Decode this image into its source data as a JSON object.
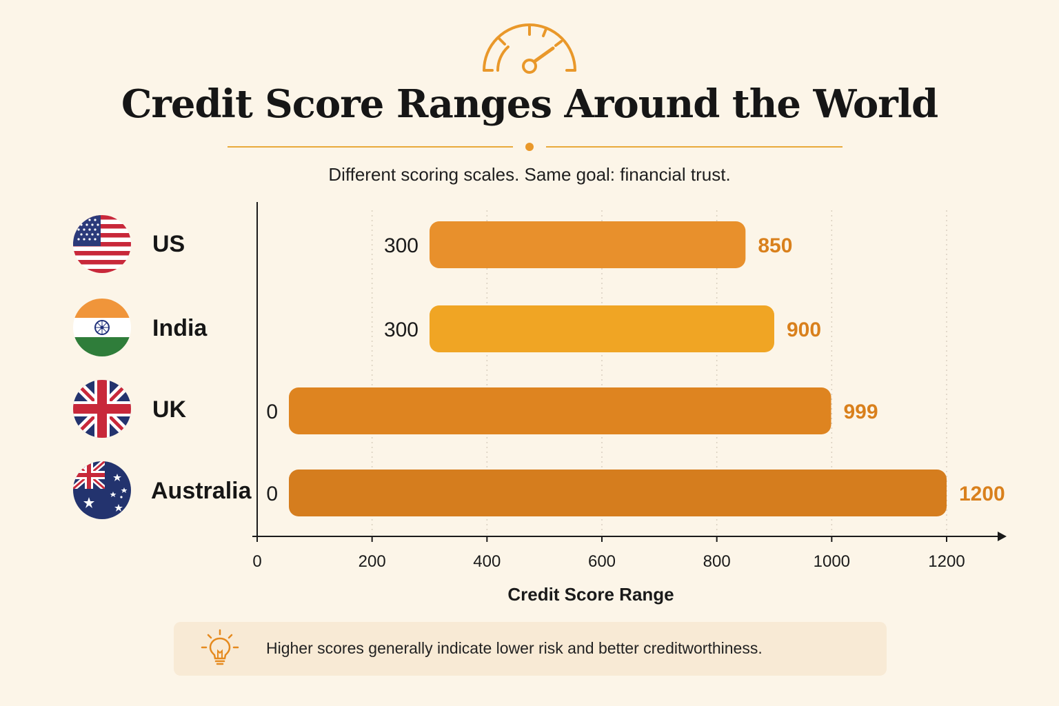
{
  "header": {
    "title": "Credit Score Ranges Around the World",
    "subtitle": "Different scoring scales. Same goal: financial trust."
  },
  "countries": [
    {
      "name": "US",
      "flag": "us-flag-icon"
    },
    {
      "name": "India",
      "flag": "india-flag-icon"
    },
    {
      "name": "UK",
      "flag": "uk-flag-icon"
    },
    {
      "name": "Australia",
      "flag": "australia-flag-icon"
    }
  ],
  "chart_data": {
    "type": "bar",
    "orientation": "horizontal-range",
    "categories": [
      "US",
      "India",
      "UK",
      "Australia"
    ],
    "ranges": [
      {
        "min": 300,
        "max": 850,
        "color": "#e8902c"
      },
      {
        "min": 300,
        "max": 900,
        "color": "#f0a524"
      },
      {
        "min": 0,
        "max": 999,
        "color": "#de8420"
      },
      {
        "min": 0,
        "max": 1200,
        "color": "#d57d1e"
      }
    ],
    "x_ticks": [
      0,
      200,
      400,
      600,
      800,
      1000,
      1200
    ],
    "xlabel": "Credit Score Range",
    "xlim": [
      0,
      1200
    ],
    "grid": "vertical dotted",
    "value_label_color": "#d9801c"
  },
  "callout": {
    "icon": "lightbulb-icon",
    "text": "Higher scores generally indicate lower risk and better creditworthiness."
  }
}
